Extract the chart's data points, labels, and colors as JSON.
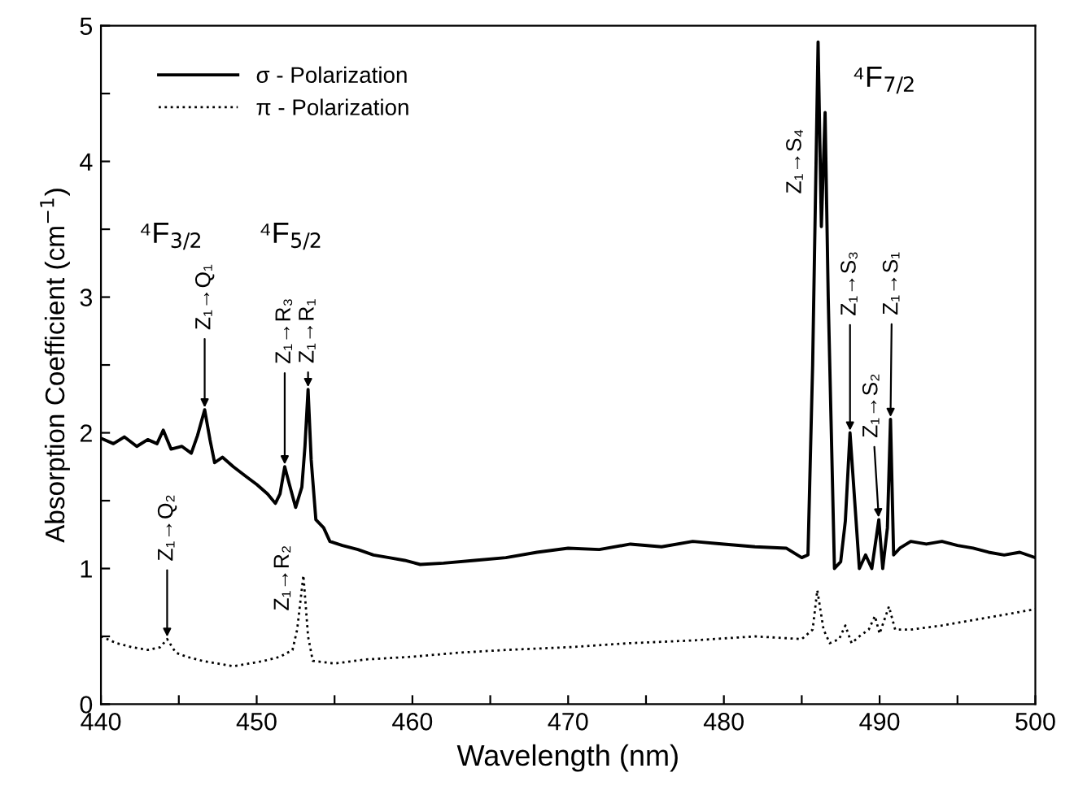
{
  "chart_data": {
    "type": "line",
    "xlabel": "Wavelength (nm)",
    "ylabel": "Absorption Coefficient (cm$^{−1}$)",
    "xlim": [
      440,
      500
    ],
    "ylim": [
      0,
      5
    ],
    "xticks": [
      440,
      {
        "value": 445,
        "label": null
      },
      450,
      {
        "value": 455,
        "label": null
      },
      460,
      {
        "value": 465,
        "label": null
      },
      470,
      {
        "value": 475,
        "label": null
      },
      480,
      {
        "value": 485,
        "label": null
      },
      490,
      {
        "value": 495,
        "label": null
      },
      500
    ],
    "yticks": [
      0,
      {
        "value": 0.5,
        "label": null
      },
      1,
      {
        "value": 1.5,
        "label": null
      },
      2,
      {
        "value": 2.5,
        "label": null
      },
      3,
      {
        "value": 3.5,
        "label": null
      },
      4,
      {
        "value": 4.5,
        "label": null
      },
      5
    ],
    "legend": "top left",
    "grid": false,
    "series": [
      {
        "name": "σ - Polarization",
        "color": "#000000",
        "line_style": "solid",
        "x": [
          440,
          440.8,
          441.5,
          442.3,
          443,
          443.6,
          444,
          444.5,
          445.2,
          445.8,
          446.2,
          446.66,
          447.0,
          447.3,
          447.8,
          448.5,
          449.3,
          450,
          450.7,
          451.2,
          451.5,
          451.8,
          452.1,
          452.5,
          452.9,
          453.1,
          453.3,
          453.5,
          453.8,
          454.3,
          454.7,
          455.5,
          456.5,
          457.5,
          458.5,
          459.5,
          460.5,
          462,
          464,
          466,
          468,
          470,
          472,
          474,
          476,
          478,
          480,
          482,
          484,
          485.0,
          485.4,
          485.7,
          486.05,
          486.26,
          486.5,
          486.7,
          487.1,
          487.5,
          487.8,
          488.1,
          488.4,
          488.7,
          489.1,
          489.5,
          489.95,
          490.2,
          490.5,
          490.7,
          490.9,
          491.3,
          492,
          493,
          494,
          495,
          496,
          497,
          498,
          499,
          500
        ],
        "values": [
          1.96,
          1.92,
          1.97,
          1.9,
          1.95,
          1.92,
          2.02,
          1.88,
          1.9,
          1.85,
          1.98,
          2.17,
          1.95,
          1.78,
          1.82,
          1.75,
          1.68,
          1.62,
          1.55,
          1.48,
          1.55,
          1.75,
          1.62,
          1.45,
          1.6,
          1.9,
          2.32,
          1.8,
          1.36,
          1.3,
          1.2,
          1.17,
          1.14,
          1.1,
          1.08,
          1.06,
          1.03,
          1.04,
          1.06,
          1.08,
          1.12,
          1.15,
          1.14,
          1.18,
          1.16,
          1.2,
          1.18,
          1.16,
          1.15,
          1.08,
          1.1,
          2.5,
          4.88,
          3.52,
          4.36,
          3.0,
          1.0,
          1.05,
          1.35,
          2.0,
          1.5,
          1.0,
          1.1,
          1.0,
          1.36,
          1.0,
          1.3,
          2.1,
          1.1,
          1.15,
          1.2,
          1.18,
          1.2,
          1.17,
          1.15,
          1.12,
          1.1,
          1.12,
          1.08
        ]
      },
      {
        "name": "π - Polarization",
        "color": "#000000",
        "line_style": "dotted",
        "x": [
          440,
          441,
          442,
          443,
          443.8,
          444.25,
          444.8,
          445.5,
          446.5,
          447.5,
          448.5,
          449.5,
          450.5,
          451.5,
          452.3,
          452.6,
          453.0,
          453.3,
          453.6,
          455,
          457,
          460,
          463,
          466,
          470,
          474,
          478,
          482,
          485,
          485.7,
          486.0,
          486.4,
          486.8,
          487.4,
          487.8,
          488.2,
          488.7,
          489.3,
          489.7,
          490.0,
          490.6,
          491.0,
          492,
          494,
          496,
          498,
          500
        ],
        "values": [
          0.5,
          0.45,
          0.42,
          0.4,
          0.42,
          0.48,
          0.38,
          0.35,
          0.32,
          0.3,
          0.28,
          0.3,
          0.32,
          0.35,
          0.4,
          0.55,
          0.95,
          0.5,
          0.32,
          0.3,
          0.33,
          0.35,
          0.38,
          0.4,
          0.42,
          0.45,
          0.47,
          0.5,
          0.48,
          0.55,
          0.84,
          0.55,
          0.45,
          0.48,
          0.58,
          0.45,
          0.5,
          0.55,
          0.65,
          0.52,
          0.72,
          0.55,
          0.55,
          0.58,
          0.62,
          0.66,
          0.7
        ]
      }
    ],
    "annotations": [
      {
        "text": "Z₁→Q₂",
        "x": 444.25,
        "y": 0.48
      },
      {
        "text": "Z₁→Q₁",
        "x": 446.66,
        "y": 2.17
      },
      {
        "text": "Z₁→R₃",
        "x": 451.8,
        "y": 1.75
      },
      {
        "text": "Z₁→R₁",
        "x": 453.3,
        "y": 2.32
      },
      {
        "text": "Z₁→S₃",
        "x": 488.1,
        "y": 2.0
      },
      {
        "text": "Z₁→S₂",
        "x": 489.95,
        "y": 1.36
      },
      {
        "text": "Z₁→S₁",
        "x": 490.7,
        "y": 2.1
      },
      "Z₁→R₂",
      "Z₁→S₄",
      "⁴F$_{3/2}$",
      "⁴F$_{5/2}$",
      "⁴F$_{7/2}$"
    ]
  }
}
